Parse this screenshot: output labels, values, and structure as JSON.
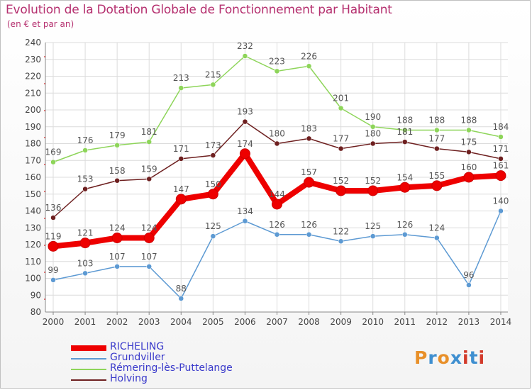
{
  "title": "Evolution de la Dotation Globale de Fonctionnement par Habitant",
  "subtitle": "(en € et par an)",
  "logo": {
    "text": "Proxiti",
    "letters": [
      "P",
      "r",
      "o",
      "x",
      "i",
      "t",
      "i"
    ],
    "colors": [
      "#e8902a",
      "#3f8fd0",
      "#e8902a",
      "#3f8fd0",
      "#d23a2a",
      "#3f8fd0",
      "#d23a2a"
    ]
  },
  "chart_data": {
    "type": "line",
    "x": [
      "2000",
      "2001",
      "2002",
      "2003",
      "2004",
      "2005",
      "2006",
      "2007",
      "2008",
      "2009",
      "2010",
      "2011",
      "2012",
      "2013",
      "2014"
    ],
    "ylim": [
      80,
      240
    ],
    "yticks": [
      80,
      90,
      100,
      110,
      120,
      130,
      140,
      150,
      160,
      170,
      180,
      190,
      200,
      210,
      220,
      230,
      240
    ],
    "grid": true,
    "xlabel": "",
    "ylabel": "",
    "series": [
      {
        "name": "Rémering-lès-Puttelange",
        "color": "#8ed55a",
        "values": [
          169,
          176,
          179,
          181,
          213,
          215,
          232,
          223,
          226,
          201,
          190,
          188,
          188,
          188,
          184
        ]
      },
      {
        "name": "Holving",
        "color": "#6e2020",
        "values": [
          136,
          153,
          158,
          159,
          171,
          173,
          193,
          180,
          183,
          177,
          180,
          181,
          177,
          175,
          171
        ]
      },
      {
        "name": "Grundviller",
        "color": "#5d9ad3",
        "values": [
          99,
          103,
          107,
          107,
          88,
          125,
          134,
          126,
          126,
          122,
          125,
          126,
          124,
          96,
          140
        ]
      },
      {
        "name": "RICHELING",
        "color": "#ee0000",
        "values": [
          119,
          121,
          124,
          124,
          147,
          150,
          174,
          144,
          157,
          152,
          152,
          154,
          155,
          160,
          161
        ]
      }
    ],
    "legend": [
      "RICHELING",
      "Grundviller",
      "Rémering-lès-Puttelange",
      "Holving"
    ]
  }
}
